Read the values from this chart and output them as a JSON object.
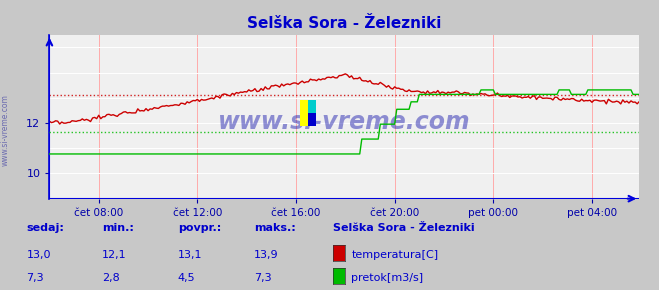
{
  "title": "Selška Sora - Železniki",
  "bg_color": "#c8c8c8",
  "plot_bg_color": "#f0f0f0",
  "grid_v_color": "#ffaaaa",
  "grid_h_color": "#ffffff",
  "title_color": "#0000cc",
  "tick_color": "#0000aa",
  "watermark_text": "www.si-vreme.com",
  "watermark_color": "#1111aa",
  "xlim": [
    0,
    287
  ],
  "ylim_temp": [
    9.0,
    15.5
  ],
  "ylim_flow": [
    0.0,
    11.0
  ],
  "yticks_temp": [
    10,
    12
  ],
  "temp_color": "#cc0000",
  "flow_color": "#00bb00",
  "temp_avg": 13.1,
  "flow_avg": 4.5,
  "x_tick_labels": [
    "čet 08:00",
    "čet 12:00",
    "čet 16:00",
    "čet 20:00",
    "pet 00:00",
    "pet 04:00"
  ],
  "x_tick_positions": [
    24,
    72,
    120,
    168,
    216,
    264
  ],
  "footer_labels": [
    "sedaj:",
    "min.:",
    "povpr.:",
    "maks.:"
  ],
  "footer_temp": [
    "13,0",
    "12,1",
    "13,1",
    "13,9"
  ],
  "footer_flow": [
    "7,3",
    "2,8",
    "4,5",
    "7,3"
  ],
  "legend_title": "Selška Sora - Železniki",
  "legend_temp": "temperatura[C]",
  "legend_flow": "pretok[m3/s]",
  "footer_color": "#0000cc",
  "border_color": "#0000dd",
  "sidebar_label": "www.si-vreme.com"
}
